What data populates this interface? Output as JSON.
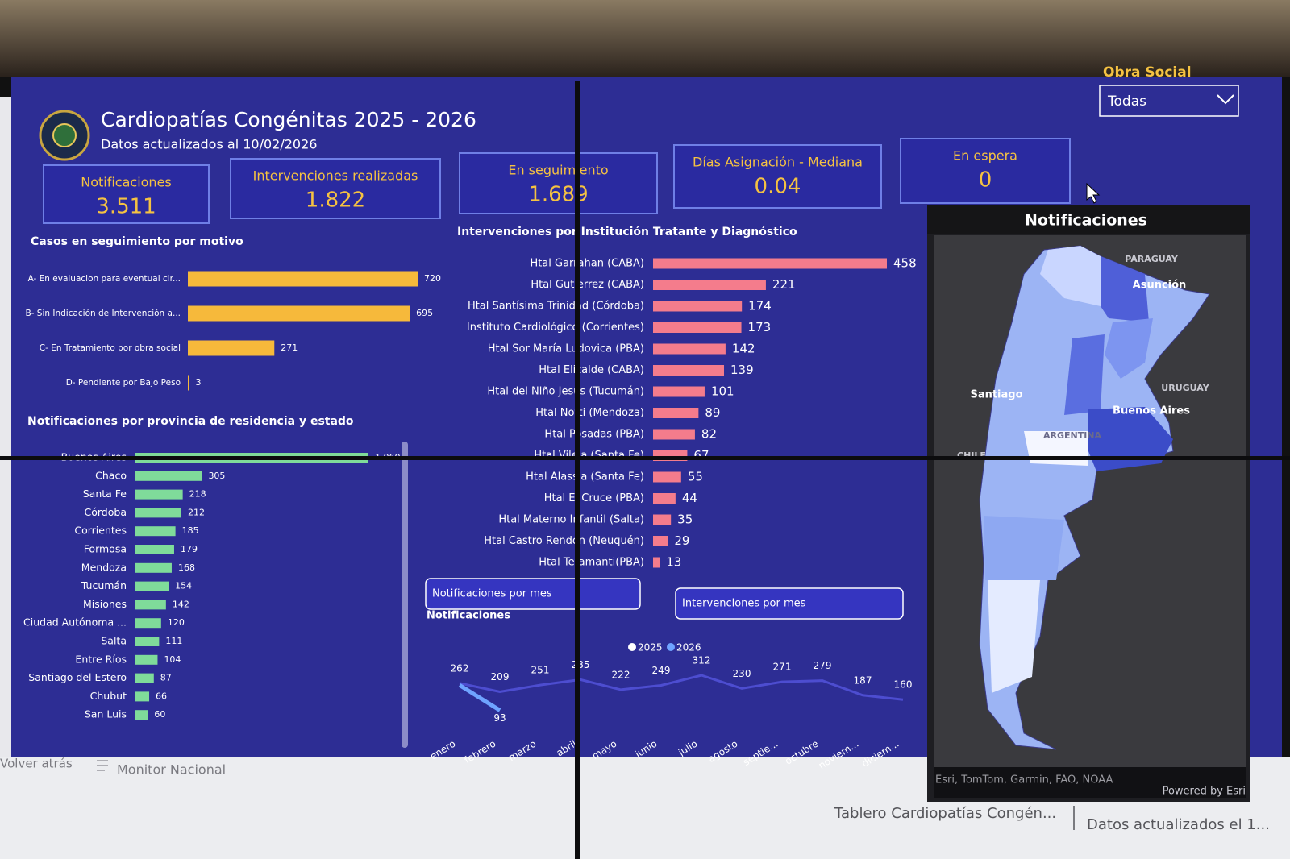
{
  "header": {
    "title": "Cardiopatías Congénitas 2025 - 2026",
    "subtitle": "Datos actualizados al 10/02/2026",
    "filter_label": "Obra Social",
    "filter_value": "Todas"
  },
  "kpis": [
    {
      "label": "Notificaciones",
      "value": "3.511"
    },
    {
      "label": "Intervenciones realizadas",
      "value": "1.822"
    },
    {
      "label": "En seguimiento",
      "value": "1.689"
    },
    {
      "label": "Días Asignación - Mediana",
      "value": "0.04"
    },
    {
      "label": "En espera",
      "value": "0"
    }
  ],
  "chart_data": [
    {
      "type": "bar",
      "orientation": "horizontal",
      "title": "Casos en seguimiento por motivo",
      "categories": [
        "A- En evaluacion para eventual cir...",
        "B- Sin Indicación de Intervención a...",
        "C- En Tratamiento por obra social",
        "D- Pendiente por Bajo Peso"
      ],
      "values": [
        720,
        695,
        271,
        3
      ],
      "color": "#f6b93b"
    },
    {
      "type": "bar",
      "orientation": "horizontal",
      "title": "Intervenciones por Institución Tratante y Diagnóstico",
      "categories": [
        "Htal Garrahan (CABA)",
        "Htal Gutierrez (CABA)",
        "Htal Santísima Trinidad (Córdoba)",
        "Instituto Cardiológico (Corrientes)",
        "Htal Sor María Ludovica (PBA)",
        "Htal Elizalde (CABA)",
        "Htal del Niño Jesús (Tucumán)",
        "Htal Notti (Mendoza)",
        "Htal Posadas (PBA)",
        "Htal Vilela (Santa Fe)",
        "Htal Alassia (Santa Fe)",
        "Htal El Cruce (PBA)",
        "Htal Materno Infantil (Salta)",
        "Htal Castro Rendón (Neuquén)",
        "Htal Tetamanti(PBA)"
      ],
      "values": [
        458,
        221,
        174,
        173,
        142,
        139,
        101,
        89,
        82,
        67,
        55,
        44,
        35,
        29,
        13
      ],
      "color": "#f47c8c"
    },
    {
      "type": "bar",
      "orientation": "horizontal",
      "title": "Notificaciones por provincia de residencia y estado",
      "categories": [
        "Buenos Aires",
        "Chaco",
        "Santa Fe",
        "Córdoba",
        "Corrientes",
        "Formosa",
        "Mendoza",
        "Tucumán",
        "Misiones",
        "Ciudad Autónoma ...",
        "Salta",
        "Entre Ríos",
        "Santiago del Estero",
        "Chubut",
        "San Luis"
      ],
      "values": [
        1060,
        305,
        218,
        212,
        185,
        179,
        168,
        154,
        142,
        120,
        111,
        104,
        87,
        66,
        60
      ],
      "value_labels": [
        "1.060",
        "305",
        "218",
        "212",
        "185",
        "179",
        "168",
        "154",
        "142",
        "120",
        "111",
        "104",
        "87",
        "66",
        "60"
      ],
      "color": "#7fdb9a"
    },
    {
      "type": "line",
      "title": "Notificaciones",
      "categories": [
        "enero",
        "febrero",
        "marzo",
        "abril",
        "mayo",
        "junio",
        "julio",
        "agosto",
        "septie...",
        "octubre",
        "noviem...",
        "diciem..."
      ],
      "series": [
        {
          "name": "2025",
          "color": "#4d4dd0",
          "values": [
            262,
            209,
            251,
            285,
            222,
            249,
            312,
            230,
            271,
            279,
            187,
            160
          ]
        },
        {
          "name": "2026",
          "color": "#6fa3ff",
          "values": [
            250,
            93,
            null,
            null,
            null,
            null,
            null,
            null,
            null,
            null,
            null,
            null
          ],
          "value_labels": [
            null,
            "93",
            null,
            null,
            null,
            null,
            null,
            null,
            null,
            null,
            null,
            null
          ]
        }
      ]
    }
  ],
  "buttons": [
    "Notificaciones por mes",
    "Intervenciones por mes"
  ],
  "map": {
    "title": "Notificaciones",
    "labels": [
      "PARAGUAY",
      "Asunción",
      "Santiago",
      "URUGUAY",
      "Buenos Aires",
      "ARGENTINA",
      "CHILE"
    ],
    "attribution": "Esri, TomTom, Garmin, FAO, NOAA",
    "powered": "Powered by Esri"
  },
  "footer": {
    "back": "Volver atrás",
    "page": "Monitor Nacional",
    "report": "Tablero Cardiopatías Congén...",
    "updated": "Datos actualizados el 1..."
  }
}
